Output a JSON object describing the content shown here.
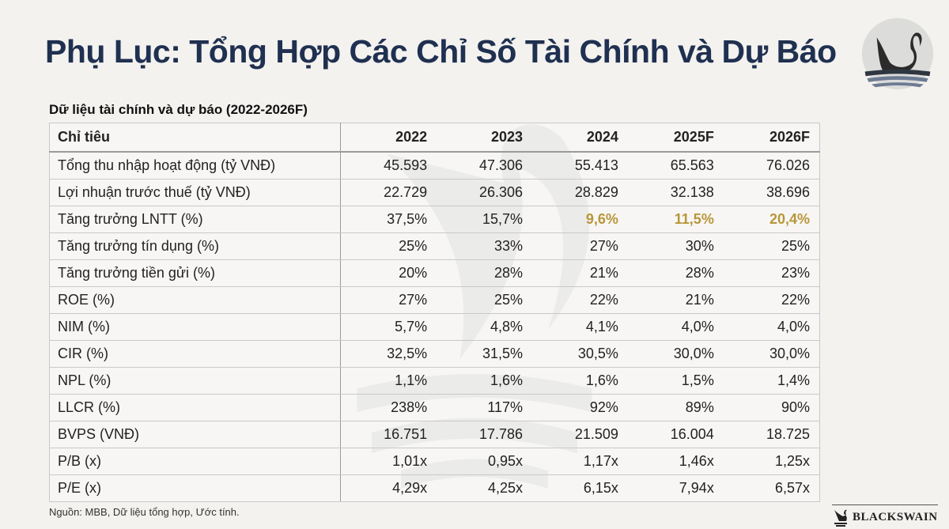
{
  "title": "Phụ Lục: Tổng Hợp Các Chỉ Số Tài Chính và Dự Báo",
  "subtitle": "Dữ liệu tài chính và dự báo (2022-2026F)",
  "highlight_color": "#b8963a",
  "table": {
    "headers": [
      "Chỉ tiêu",
      "2022",
      "2023",
      "2024",
      "2025F",
      "2026F"
    ],
    "rows": [
      {
        "cells": [
          "Tổng thu nhập hoạt động (tỷ VNĐ)",
          "45.593",
          "47.306",
          "55.413",
          "65.563",
          "76.026"
        ]
      },
      {
        "cells": [
          "Lợi nhuận trước thuế (tỷ VNĐ)",
          "22.729",
          "26.306",
          "28.829",
          "32.138",
          "38.696"
        ]
      },
      {
        "cells": [
          "Tăng trưởng LNTT (%)",
          "37,5%",
          "15,7%",
          "9,6%",
          "11,5%",
          "20,4%"
        ],
        "highlight": [
          3,
          4,
          5
        ]
      },
      {
        "cells": [
          "Tăng trưởng tín dụng (%)",
          "25%",
          "33%",
          "27%",
          "30%",
          "25%"
        ]
      },
      {
        "cells": [
          "Tăng trưởng tiền gửi (%)",
          "20%",
          "28%",
          "21%",
          "28%",
          "23%"
        ]
      },
      {
        "cells": [
          "ROE (%)",
          "27%",
          "25%",
          "22%",
          "21%",
          "22%"
        ]
      },
      {
        "cells": [
          "NIM (%)",
          "5,7%",
          "4,8%",
          "4,1%",
          "4,0%",
          "4,0%"
        ]
      },
      {
        "cells": [
          "CIR (%)",
          "32,5%",
          "31,5%",
          "30,5%",
          "30,0%",
          "30,0%"
        ]
      },
      {
        "cells": [
          "NPL (%)",
          "1,1%",
          "1,6%",
          "1,6%",
          "1,5%",
          "1,4%"
        ]
      },
      {
        "cells": [
          "LLCR (%)",
          "238%",
          "117%",
          "92%",
          "89%",
          "90%"
        ]
      },
      {
        "cells": [
          "BVPS (VNĐ)",
          "16.751",
          "17.786",
          "21.509",
          "16.004",
          "18.725"
        ]
      },
      {
        "cells": [
          "P/B (x)",
          "1,01x",
          "0,95x",
          "1,17x",
          "1,46x",
          "1,25x"
        ]
      },
      {
        "cells": [
          "P/E (x)",
          "4,29x",
          "4,25x",
          "6,15x",
          "7,94x",
          "6,57x"
        ]
      }
    ]
  },
  "source": "Nguồn: MBB, Dữ liệu tổng hợp, Ước tính.",
  "brand": {
    "logo_icon": "black-swan-logo",
    "wordmark": "BLACKSWAIN"
  }
}
